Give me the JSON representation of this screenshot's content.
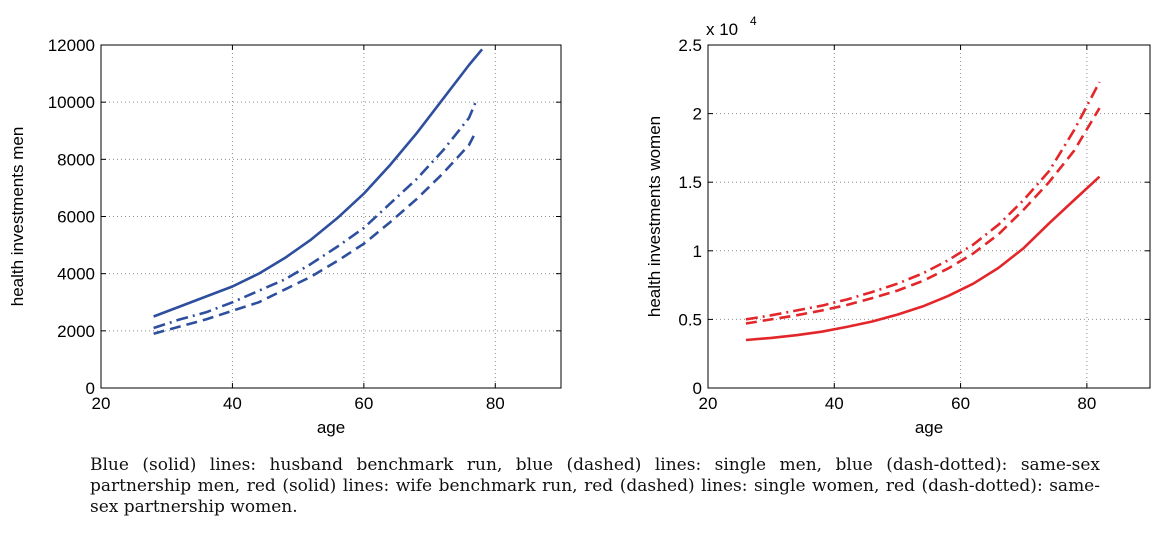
{
  "caption": "Blue (solid) lines: husband benchmark run, blue (dashed) lines: single men, blue (dash-dotted): same-sex partnership men, red (solid) lines: wife benchmark run, red (dashed) lines: single women, red (dash-dotted): same-sex partnership women.",
  "colors": {
    "blue": "#2e4f9e",
    "red": "#e3262a",
    "grid": "#8c8c8c"
  },
  "chart_data": [
    {
      "type": "line",
      "title": "",
      "xlabel": "age",
      "ylabel": "health investments men",
      "xlim": [
        20,
        90
      ],
      "ylim": [
        0,
        12000
      ],
      "xticks": [
        20,
        40,
        60,
        80
      ],
      "yticks": [
        0,
        2000,
        4000,
        6000,
        8000,
        10000,
        12000
      ],
      "ytick_labels": [
        "0",
        "2000",
        "4000",
        "6000",
        "8000",
        "10000",
        "12000"
      ],
      "exponent_label": "",
      "grid": true,
      "series": [
        {
          "style": "solid",
          "color": "#2e4f9e",
          "x": [
            28,
            32,
            36,
            40,
            44,
            48,
            52,
            56,
            60,
            64,
            68,
            72,
            76,
            78
          ],
          "y": [
            2500,
            2850,
            3200,
            3550,
            4000,
            4550,
            5200,
            5950,
            6800,
            7800,
            8900,
            10100,
            11300,
            11850
          ]
        },
        {
          "style": "dashed",
          "color": "#2e4f9e",
          "x": [
            28,
            32,
            36,
            40,
            44,
            48,
            52,
            56,
            60,
            64,
            68,
            72,
            76,
            77
          ],
          "y": [
            1900,
            2150,
            2400,
            2700,
            3000,
            3450,
            3900,
            4450,
            5050,
            5800,
            6600,
            7500,
            8500,
            8950
          ]
        },
        {
          "style": "dashdot",
          "color": "#2e4f9e",
          "x": [
            28,
            32,
            36,
            40,
            44,
            48,
            52,
            56,
            60,
            64,
            68,
            72,
            76,
            77
          ],
          "y": [
            2100,
            2400,
            2650,
            3000,
            3400,
            3800,
            4350,
            4950,
            5600,
            6450,
            7300,
            8300,
            9450,
            10000
          ]
        }
      ]
    },
    {
      "type": "line",
      "title": "",
      "xlabel": "age",
      "ylabel": "health investments women",
      "xlim": [
        20,
        90
      ],
      "ylim": [
        0,
        25000
      ],
      "xticks": [
        20,
        40,
        60,
        80
      ],
      "yticks": [
        0,
        5000,
        10000,
        15000,
        20000,
        25000
      ],
      "ytick_labels": [
        "0",
        "0.5",
        "1",
        "1.5",
        "2",
        "2.5"
      ],
      "exponent_label": "x 10",
      "exponent_power": "4",
      "grid": true,
      "series": [
        {
          "style": "solid",
          "color": "#e3262a",
          "x": [
            26,
            30,
            34,
            38,
            42,
            46,
            50,
            54,
            58,
            62,
            66,
            70,
            74,
            78,
            82
          ],
          "y": [
            3500,
            3650,
            3850,
            4100,
            4450,
            4850,
            5350,
            5950,
            6700,
            7600,
            8750,
            10200,
            12000,
            13700,
            15400
          ]
        },
        {
          "style": "dashed",
          "color": "#e3262a",
          "x": [
            26,
            30,
            34,
            38,
            42,
            46,
            50,
            54,
            58,
            62,
            66,
            70,
            74,
            78,
            82
          ],
          "y": [
            4700,
            5000,
            5300,
            5650,
            6050,
            6550,
            7100,
            7800,
            8700,
            9800,
            11200,
            13000,
            15000,
            17300,
            20400
          ]
        },
        {
          "style": "dashdot",
          "color": "#e3262a",
          "x": [
            26,
            30,
            34,
            38,
            42,
            46,
            50,
            54,
            58,
            62,
            66,
            70,
            74,
            78,
            82
          ],
          "y": [
            5000,
            5300,
            5650,
            6000,
            6450,
            7000,
            7600,
            8350,
            9300,
            10450,
            11900,
            13700,
            15800,
            18800,
            22300
          ]
        }
      ]
    }
  ]
}
